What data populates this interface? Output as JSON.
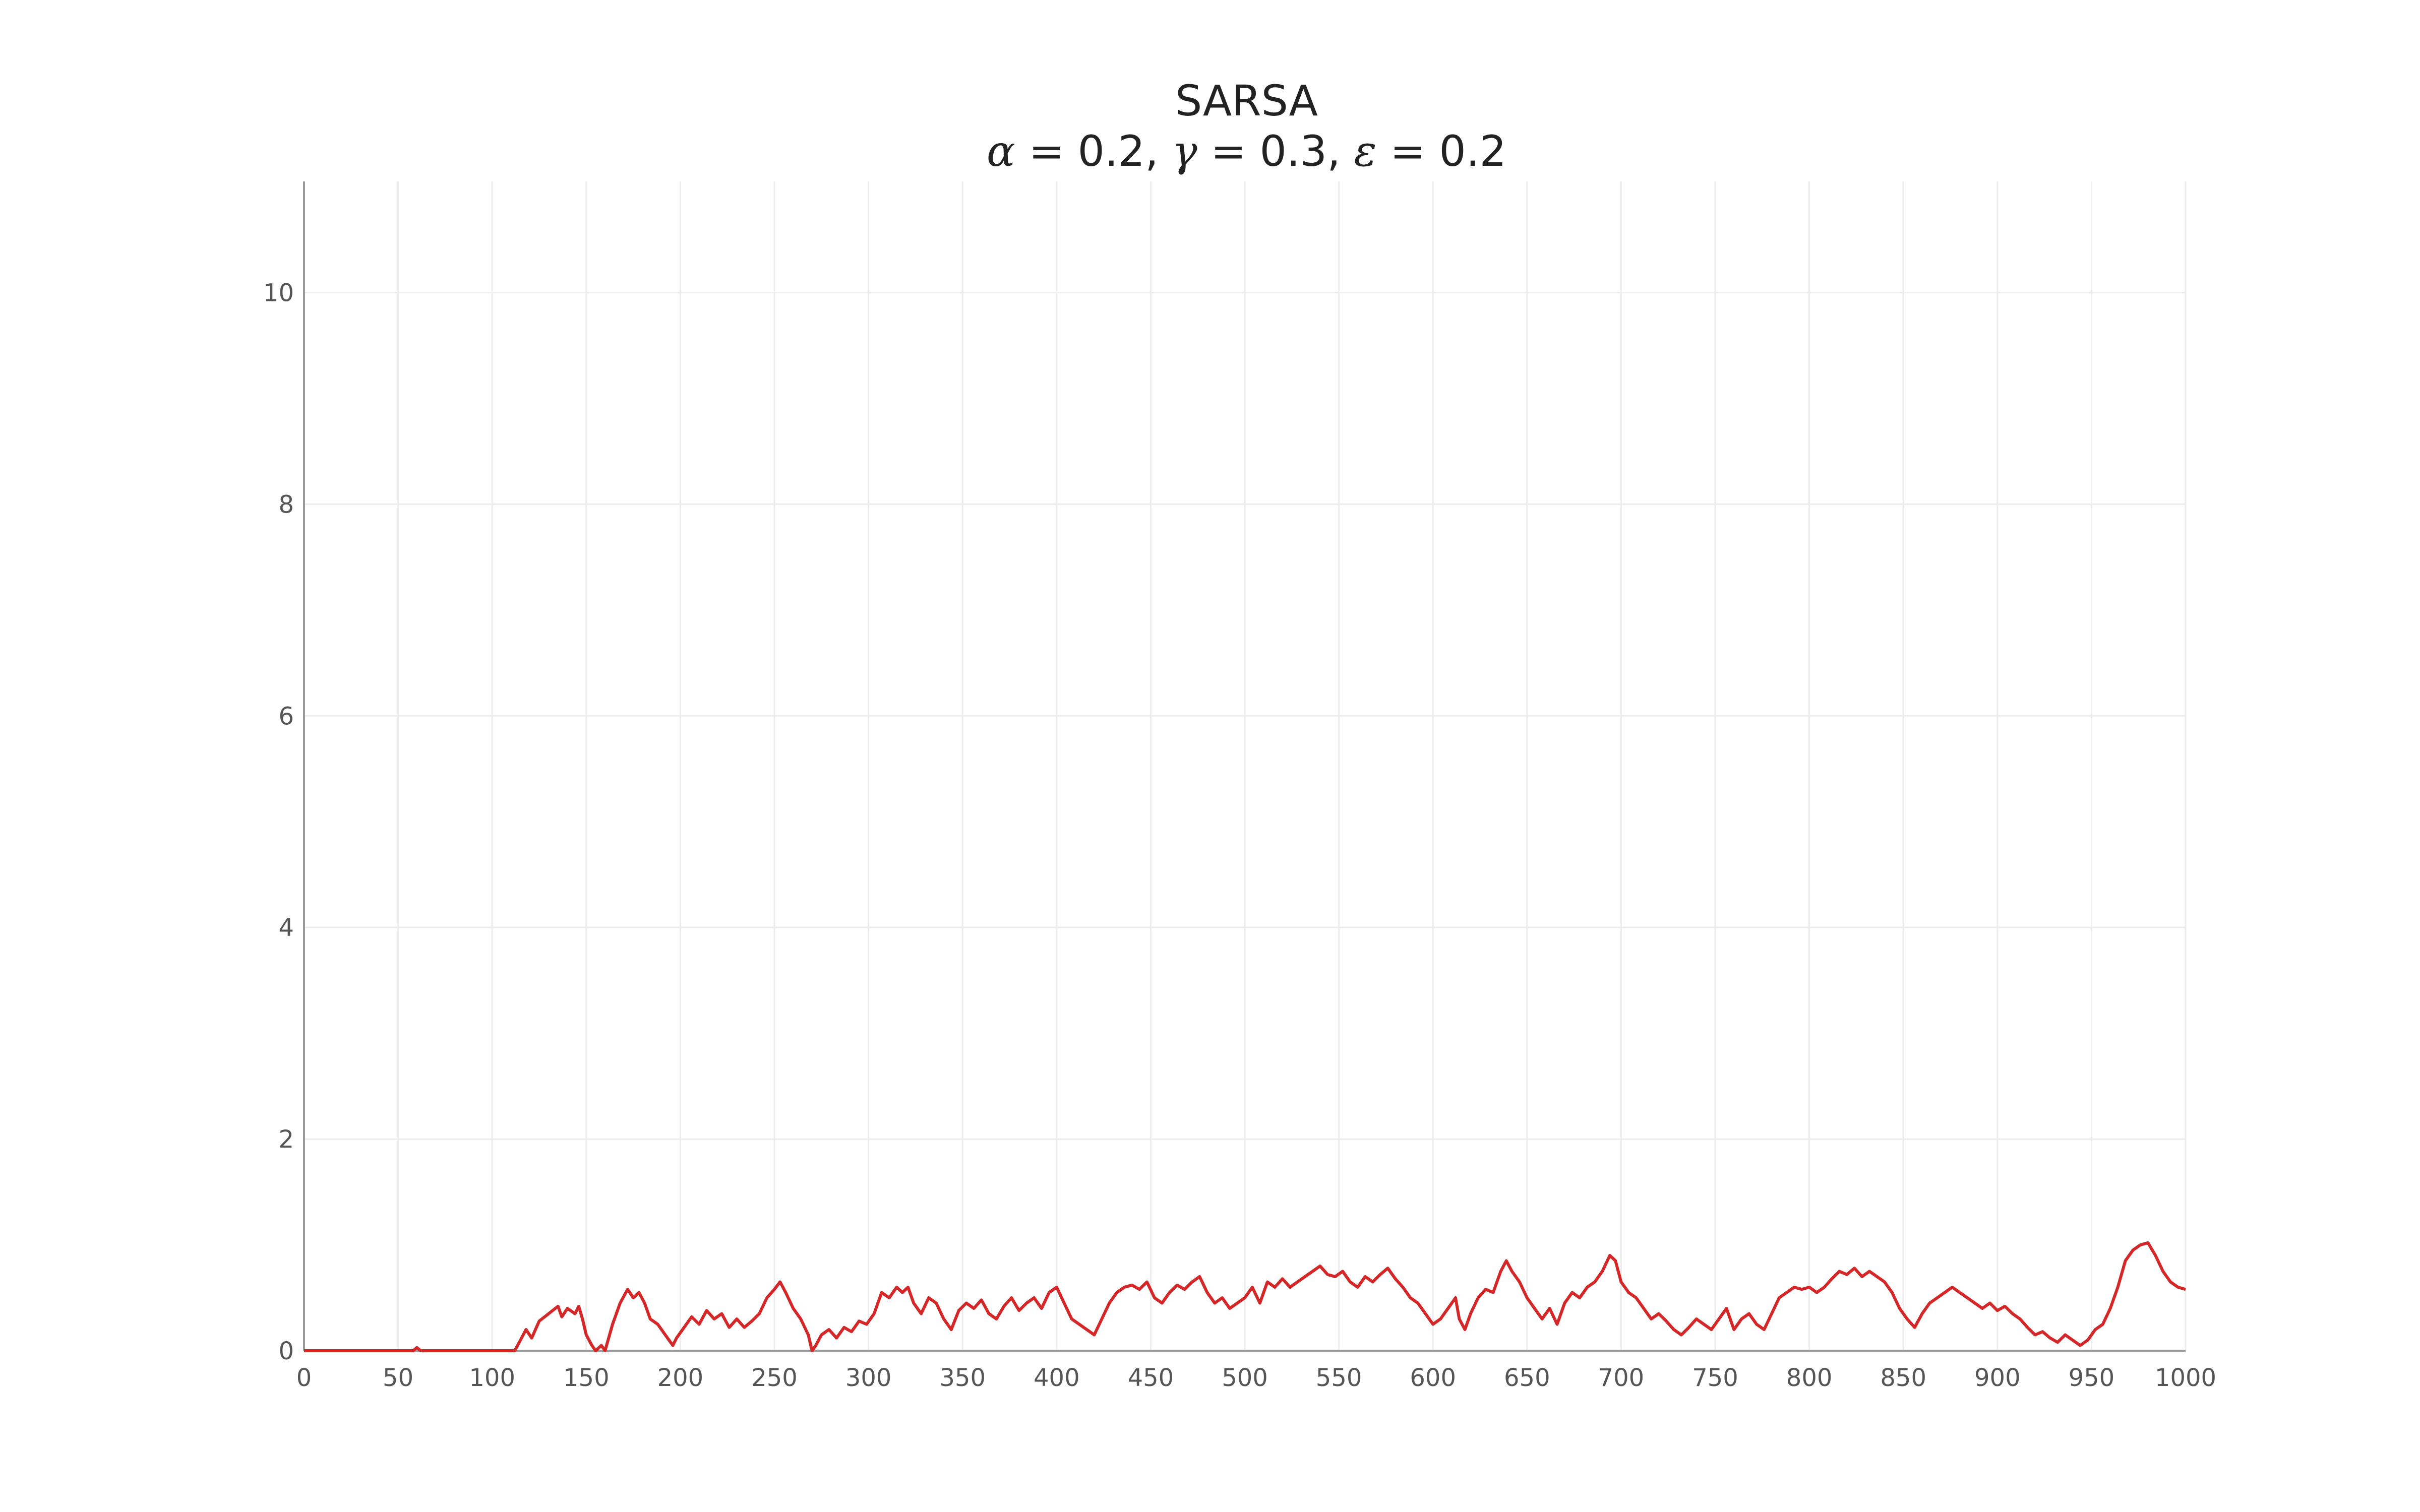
{
  "chart_data": {
    "type": "line",
    "title": "SARSA",
    "subtitle": {
      "parts": [
        {
          "text": "α",
          "math": true
        },
        {
          "text": " = 0.2, ",
          "math": false
        },
        {
          "text": "γ",
          "math": true
        },
        {
          "text": " = 0.3, ",
          "math": false
        },
        {
          "text": "ε",
          "math": true
        },
        {
          "text": " = 0.2",
          "math": false
        }
      ]
    },
    "xlabel": "",
    "ylabel": "",
    "xlim": [
      0,
      1000
    ],
    "ylim": [
      0,
      11.05
    ],
    "x_ticks": [
      0,
      50,
      100,
      150,
      200,
      250,
      300,
      350,
      400,
      450,
      500,
      550,
      600,
      650,
      700,
      750,
      800,
      850,
      900,
      950,
      1000
    ],
    "y_ticks": [
      0,
      2,
      4,
      6,
      8,
      10
    ],
    "grid": true,
    "series": [
      {
        "color": "#d62728",
        "points": [
          [
            0,
            0
          ],
          [
            58,
            0
          ],
          [
            60,
            0.03
          ],
          [
            62,
            0
          ],
          [
            112,
            0
          ],
          [
            115,
            0.1
          ],
          [
            118,
            0.2
          ],
          [
            121,
            0.12
          ],
          [
            125,
            0.28
          ],
          [
            130,
            0.35
          ],
          [
            135,
            0.42
          ],
          [
            137,
            0.32
          ],
          [
            140,
            0.4
          ],
          [
            144,
            0.35
          ],
          [
            146,
            0.42
          ],
          [
            148,
            0.3
          ],
          [
            150,
            0.15
          ],
          [
            153,
            0.05
          ],
          [
            155,
            0
          ],
          [
            158,
            0.05
          ],
          [
            160,
            0
          ],
          [
            164,
            0.25
          ],
          [
            168,
            0.45
          ],
          [
            172,
            0.58
          ],
          [
            175,
            0.5
          ],
          [
            178,
            0.55
          ],
          [
            181,
            0.45
          ],
          [
            184,
            0.3
          ],
          [
            188,
            0.25
          ],
          [
            192,
            0.15
          ],
          [
            196,
            0.05
          ],
          [
            198,
            0.12
          ],
          [
            202,
            0.22
          ],
          [
            206,
            0.32
          ],
          [
            210,
            0.25
          ],
          [
            214,
            0.38
          ],
          [
            218,
            0.3
          ],
          [
            222,
            0.35
          ],
          [
            226,
            0.22
          ],
          [
            230,
            0.3
          ],
          [
            234,
            0.22
          ],
          [
            238,
            0.28
          ],
          [
            242,
            0.35
          ],
          [
            246,
            0.5
          ],
          [
            250,
            0.58
          ],
          [
            253,
            0.65
          ],
          [
            256,
            0.55
          ],
          [
            260,
            0.4
          ],
          [
            264,
            0.3
          ],
          [
            268,
            0.15
          ],
          [
            270,
            0
          ],
          [
            272,
            0.05
          ],
          [
            275,
            0.15
          ],
          [
            279,
            0.2
          ],
          [
            283,
            0.12
          ],
          [
            287,
            0.22
          ],
          [
            291,
            0.18
          ],
          [
            295,
            0.28
          ],
          [
            299,
            0.25
          ],
          [
            303,
            0.35
          ],
          [
            307,
            0.55
          ],
          [
            311,
            0.5
          ],
          [
            315,
            0.6
          ],
          [
            318,
            0.55
          ],
          [
            321,
            0.6
          ],
          [
            324,
            0.45
          ],
          [
            328,
            0.35
          ],
          [
            332,
            0.5
          ],
          [
            336,
            0.45
          ],
          [
            340,
            0.3
          ],
          [
            344,
            0.2
          ],
          [
            348,
            0.38
          ],
          [
            352,
            0.45
          ],
          [
            356,
            0.4
          ],
          [
            360,
            0.48
          ],
          [
            364,
            0.35
          ],
          [
            368,
            0.3
          ],
          [
            372,
            0.42
          ],
          [
            376,
            0.5
          ],
          [
            380,
            0.38
          ],
          [
            384,
            0.45
          ],
          [
            388,
            0.5
          ],
          [
            392,
            0.4
          ],
          [
            396,
            0.55
          ],
          [
            400,
            0.6
          ],
          [
            404,
            0.45
          ],
          [
            408,
            0.3
          ],
          [
            412,
            0.25
          ],
          [
            416,
            0.2
          ],
          [
            420,
            0.15
          ],
          [
            424,
            0.3
          ],
          [
            428,
            0.45
          ],
          [
            432,
            0.55
          ],
          [
            436,
            0.6
          ],
          [
            440,
            0.62
          ],
          [
            444,
            0.58
          ],
          [
            448,
            0.65
          ],
          [
            452,
            0.5
          ],
          [
            456,
            0.45
          ],
          [
            460,
            0.55
          ],
          [
            464,
            0.62
          ],
          [
            468,
            0.58
          ],
          [
            472,
            0.65
          ],
          [
            476,
            0.7
          ],
          [
            480,
            0.55
          ],
          [
            484,
            0.45
          ],
          [
            488,
            0.5
          ],
          [
            492,
            0.4
          ],
          [
            496,
            0.45
          ],
          [
            500,
            0.5
          ],
          [
            504,
            0.6
          ],
          [
            508,
            0.45
          ],
          [
            512,
            0.65
          ],
          [
            516,
            0.6
          ],
          [
            520,
            0.68
          ],
          [
            524,
            0.6
          ],
          [
            528,
            0.65
          ],
          [
            532,
            0.7
          ],
          [
            536,
            0.75
          ],
          [
            540,
            0.8
          ],
          [
            544,
            0.72
          ],
          [
            548,
            0.7
          ],
          [
            552,
            0.75
          ],
          [
            556,
            0.65
          ],
          [
            560,
            0.6
          ],
          [
            564,
            0.7
          ],
          [
            568,
            0.65
          ],
          [
            572,
            0.72
          ],
          [
            576,
            0.78
          ],
          [
            580,
            0.68
          ],
          [
            584,
            0.6
          ],
          [
            588,
            0.5
          ],
          [
            592,
            0.45
          ],
          [
            596,
            0.35
          ],
          [
            600,
            0.25
          ],
          [
            604,
            0.3
          ],
          [
            608,
            0.4
          ],
          [
            612,
            0.5
          ],
          [
            614,
            0.3
          ],
          [
            617,
            0.2
          ],
          [
            620,
            0.35
          ],
          [
            624,
            0.5
          ],
          [
            628,
            0.58
          ],
          [
            632,
            0.55
          ],
          [
            636,
            0.75
          ],
          [
            639,
            0.85
          ],
          [
            642,
            0.75
          ],
          [
            646,
            0.65
          ],
          [
            650,
            0.5
          ],
          [
            654,
            0.4
          ],
          [
            658,
            0.3
          ],
          [
            662,
            0.4
          ],
          [
            666,
            0.25
          ],
          [
            670,
            0.45
          ],
          [
            674,
            0.55
          ],
          [
            678,
            0.5
          ],
          [
            682,
            0.6
          ],
          [
            686,
            0.65
          ],
          [
            690,
            0.75
          ],
          [
            694,
            0.9
          ],
          [
            697,
            0.85
          ],
          [
            700,
            0.65
          ],
          [
            704,
            0.55
          ],
          [
            708,
            0.5
          ],
          [
            712,
            0.4
          ],
          [
            716,
            0.3
          ],
          [
            720,
            0.35
          ],
          [
            724,
            0.28
          ],
          [
            728,
            0.2
          ],
          [
            732,
            0.15
          ],
          [
            736,
            0.22
          ],
          [
            740,
            0.3
          ],
          [
            744,
            0.25
          ],
          [
            748,
            0.2
          ],
          [
            752,
            0.3
          ],
          [
            756,
            0.4
          ],
          [
            760,
            0.2
          ],
          [
            764,
            0.3
          ],
          [
            768,
            0.35
          ],
          [
            772,
            0.25
          ],
          [
            776,
            0.2
          ],
          [
            780,
            0.35
          ],
          [
            784,
            0.5
          ],
          [
            788,
            0.55
          ],
          [
            792,
            0.6
          ],
          [
            796,
            0.58
          ],
          [
            800,
            0.6
          ],
          [
            804,
            0.55
          ],
          [
            808,
            0.6
          ],
          [
            812,
            0.68
          ],
          [
            816,
            0.75
          ],
          [
            820,
            0.72
          ],
          [
            824,
            0.78
          ],
          [
            828,
            0.7
          ],
          [
            832,
            0.75
          ],
          [
            836,
            0.7
          ],
          [
            840,
            0.65
          ],
          [
            844,
            0.55
          ],
          [
            848,
            0.4
          ],
          [
            852,
            0.3
          ],
          [
            856,
            0.22
          ],
          [
            860,
            0.35
          ],
          [
            864,
            0.45
          ],
          [
            868,
            0.5
          ],
          [
            872,
            0.55
          ],
          [
            876,
            0.6
          ],
          [
            880,
            0.55
          ],
          [
            884,
            0.5
          ],
          [
            888,
            0.45
          ],
          [
            892,
            0.4
          ],
          [
            896,
            0.45
          ],
          [
            900,
            0.38
          ],
          [
            904,
            0.42
          ],
          [
            908,
            0.35
          ],
          [
            912,
            0.3
          ],
          [
            916,
            0.22
          ],
          [
            920,
            0.15
          ],
          [
            924,
            0.18
          ],
          [
            928,
            0.12
          ],
          [
            932,
            0.08
          ],
          [
            936,
            0.15
          ],
          [
            940,
            0.1
          ],
          [
            944,
            0.05
          ],
          [
            948,
            0.1
          ],
          [
            952,
            0.2
          ],
          [
            956,
            0.25
          ],
          [
            960,
            0.4
          ],
          [
            964,
            0.6
          ],
          [
            968,
            0.85
          ],
          [
            972,
            0.95
          ],
          [
            976,
            1.0
          ],
          [
            980,
            1.02
          ],
          [
            984,
            0.9
          ],
          [
            988,
            0.75
          ],
          [
            992,
            0.65
          ],
          [
            996,
            0.6
          ],
          [
            1000,
            0.58
          ]
        ]
      }
    ]
  }
}
